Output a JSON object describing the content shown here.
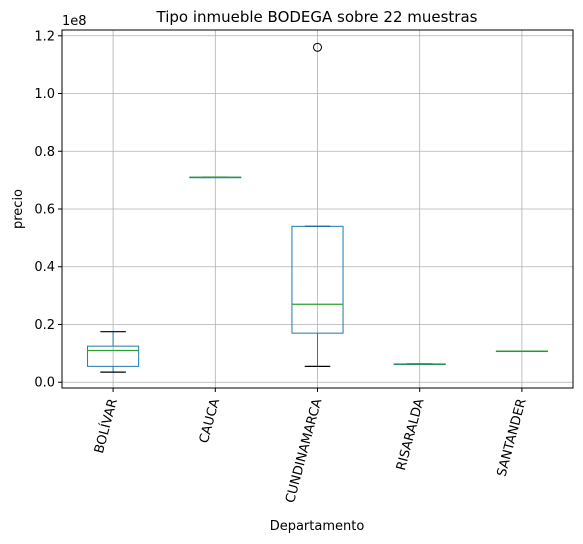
{
  "chart_data": {
    "type": "boxplot",
    "title": "Tipo inmueble BODEGA sobre 22 muestras",
    "xlabel": "Departamento",
    "ylabel": "precio",
    "y_multiplier_label": "1e8",
    "y_scale": 100000000,
    "ylim": [
      -2000000,
      122000000
    ],
    "yticks": [
      0.0,
      0.2,
      0.4,
      0.6,
      0.8,
      1.0,
      1.2
    ],
    "ytick_labels": [
      "0.0",
      "0.2",
      "0.4",
      "0.6",
      "0.8",
      "1.0",
      "1.2"
    ],
    "grid": true,
    "categories": [
      "BOLÍVAR",
      "CAUCA",
      "CUNDINAMARCA",
      "RISARALDA",
      "SANTANDER"
    ],
    "boxes": [
      {
        "category": "BOLÍVAR",
        "whisker_low": 3500000,
        "q1": 5500000,
        "median": 11000000,
        "q3": 12500000,
        "whisker_high": 17500000,
        "outliers": []
      },
      {
        "category": "CAUCA",
        "whisker_low": 71000000,
        "q1": 71000000,
        "median": 71000000,
        "q3": 71000000,
        "whisker_high": 71000000,
        "outliers": []
      },
      {
        "category": "CUNDINAMARCA",
        "whisker_low": 5500000,
        "q1": 17000000,
        "median": 27000000,
        "q3": 54000000,
        "whisker_high": 54000000,
        "outliers": [
          116000000
        ]
      },
      {
        "category": "RISARALDA",
        "whisker_low": 6300000,
        "q1": 6300000,
        "median": 6300000,
        "q3": 6300000,
        "whisker_high": 6300000,
        "outliers": []
      },
      {
        "category": "SANTANDER",
        "whisker_low": 10800000,
        "q1": 10800000,
        "median": 10800000,
        "q3": 10800000,
        "whisker_high": 10800000,
        "outliers": []
      }
    ],
    "colors": {
      "box": "#1f77b4",
      "median": "#2ca02c",
      "whisker_cap": "#000000",
      "grid": "#b0b0b0"
    }
  }
}
